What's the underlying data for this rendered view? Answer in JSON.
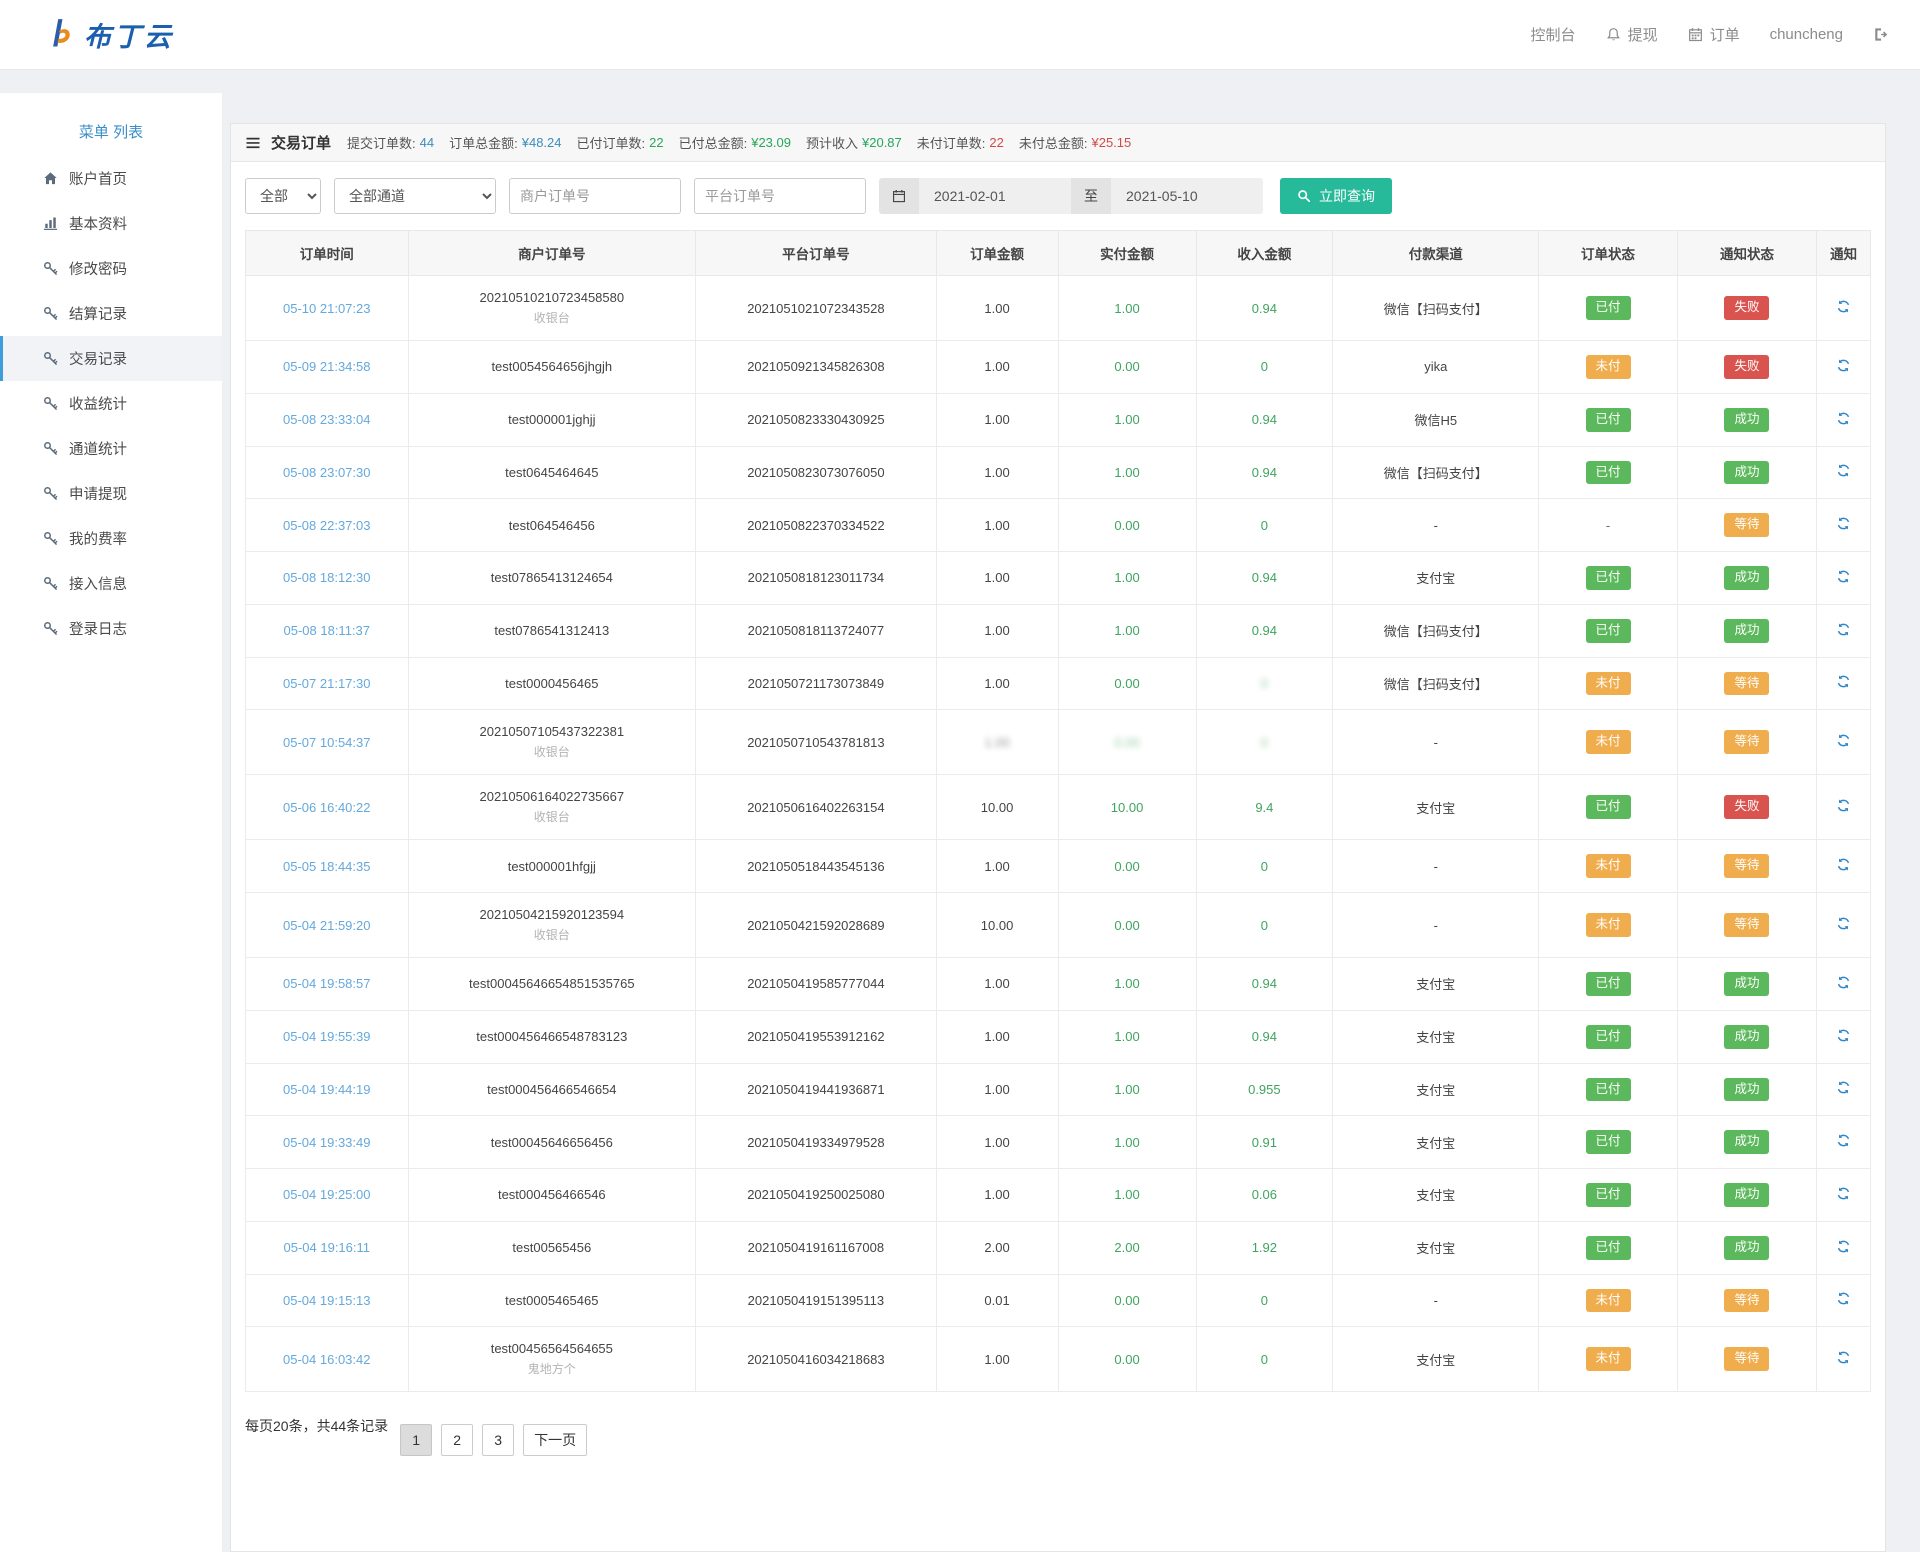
{
  "header": {
    "logo_text": "布丁云",
    "nav": {
      "console": "控制台",
      "withdraw": "提现",
      "orders": "订单",
      "username": "chuncheng"
    }
  },
  "sidebar": {
    "title": "菜单 列表",
    "items": [
      {
        "id": "account-home",
        "icon": "home",
        "label": "账户首页",
        "active": false
      },
      {
        "id": "basic-info",
        "icon": "chart",
        "label": "基本资料",
        "active": false
      },
      {
        "id": "change-password",
        "icon": "key",
        "label": "修改密码",
        "active": false
      },
      {
        "id": "settlement-records",
        "icon": "key",
        "label": "结算记录",
        "active": false
      },
      {
        "id": "transaction-records",
        "icon": "key",
        "label": "交易记录",
        "active": true
      },
      {
        "id": "income-stats",
        "icon": "key",
        "label": "收益统计",
        "active": false
      },
      {
        "id": "channel-stats",
        "icon": "key",
        "label": "通道统计",
        "active": false
      },
      {
        "id": "apply-withdraw",
        "icon": "key",
        "label": "申请提现",
        "active": false
      },
      {
        "id": "my-rates",
        "icon": "key",
        "label": "我的费率",
        "active": false
      },
      {
        "id": "access-info",
        "icon": "key",
        "label": "接入信息",
        "active": false
      },
      {
        "id": "login-logs",
        "icon": "key",
        "label": "登录日志",
        "active": false
      }
    ]
  },
  "panel": {
    "title": "交易订单",
    "stats": [
      {
        "id": "submitted-count",
        "label": "提交订单数:",
        "value": "44",
        "color": "blue"
      },
      {
        "id": "total-amount",
        "label": "订单总金额:",
        "value": "¥48.24",
        "color": "blue"
      },
      {
        "id": "paid-count",
        "label": "已付订单数:",
        "value": "22",
        "color": "green"
      },
      {
        "id": "paid-amount",
        "label": "已付总金额:",
        "value": "¥23.09",
        "color": "green"
      },
      {
        "id": "expected-income",
        "label": "预计收入",
        "value": "¥20.87",
        "color": "green"
      },
      {
        "id": "unpaid-count",
        "label": "未付订单数:",
        "value": "22",
        "color": "red"
      },
      {
        "id": "unpaid-amount",
        "label": "未付总金额:",
        "value": "¥25.15",
        "color": "red"
      }
    ],
    "filters": {
      "status_select": "全部",
      "channel_select": "全部通道",
      "merchant_no_placeholder": "商户订单号",
      "platform_no_placeholder": "平台订单号",
      "date_from": "2021-02-01",
      "date_separator": "至",
      "date_to": "2021-05-10",
      "search_button": "立即查询"
    },
    "table": {
      "headers": [
        "订单时间",
        "商户订单号",
        "平台订单号",
        "订单金额",
        "实付金额",
        "收入金额",
        "付款渠道",
        "订单状态",
        "通知状态",
        "通知"
      ],
      "rows": [
        {
          "time": "05-10 21:07:23",
          "merchant": "20210510210723458580",
          "merchant_sub": "收银台",
          "platform": "2021051021072343528",
          "amount": "1.00",
          "paid": "1.00",
          "income": "0.94",
          "channel": "微信【扫码支付】",
          "order_status": {
            "label": "已付",
            "type": "paid"
          },
          "notify_status": {
            "label": "失败",
            "type": "fail"
          },
          "blur": []
        },
        {
          "time": "05-09 21:34:58",
          "merchant": "test0054564656jhgjh",
          "merchant_sub": "",
          "platform": "2021050921345826308",
          "amount": "1.00",
          "paid": "0.00",
          "income": "0",
          "channel": "yika",
          "order_status": {
            "label": "未付",
            "type": "unpaid"
          },
          "notify_status": {
            "label": "失败",
            "type": "fail"
          },
          "blur": []
        },
        {
          "time": "05-08 23:33:04",
          "merchant": "test000001jghjj",
          "merchant_sub": "",
          "platform": "2021050823330430925",
          "amount": "1.00",
          "paid": "1.00",
          "income": "0.94",
          "channel": "微信H5",
          "order_status": {
            "label": "已付",
            "type": "paid"
          },
          "notify_status": {
            "label": "成功",
            "type": "success"
          },
          "blur": []
        },
        {
          "time": "05-08 23:07:30",
          "merchant": "test0645464645",
          "merchant_sub": "",
          "platform": "2021050823073076050",
          "amount": "1.00",
          "paid": "1.00",
          "income": "0.94",
          "channel": "微信【扫码支付】",
          "order_status": {
            "label": "已付",
            "type": "paid"
          },
          "notify_status": {
            "label": "成功",
            "type": "success"
          },
          "blur": []
        },
        {
          "time": "05-08 22:37:03",
          "merchant": "test064546456",
          "merchant_sub": "",
          "platform": "2021050822370334522",
          "amount": "1.00",
          "paid": "0.00",
          "income": "0",
          "channel": "-",
          "order_status": {
            "label": "-",
            "type": "none"
          },
          "notify_status": {
            "label": "等待",
            "type": "wait"
          },
          "blur": []
        },
        {
          "time": "05-08 18:12:30",
          "merchant": "test07865413124654",
          "merchant_sub": "",
          "platform": "2021050818123011734",
          "amount": "1.00",
          "paid": "1.00",
          "income": "0.94",
          "channel": "支付宝",
          "order_status": {
            "label": "已付",
            "type": "paid"
          },
          "notify_status": {
            "label": "成功",
            "type": "success"
          },
          "blur": []
        },
        {
          "time": "05-08 18:11:37",
          "merchant": "test0786541312413",
          "merchant_sub": "",
          "platform": "2021050818113724077",
          "amount": "1.00",
          "paid": "1.00",
          "income": "0.94",
          "channel": "微信【扫码支付】",
          "order_status": {
            "label": "已付",
            "type": "paid"
          },
          "notify_status": {
            "label": "成功",
            "type": "success"
          },
          "blur": []
        },
        {
          "time": "05-07 21:17:30",
          "merchant": "test0000456465",
          "merchant_sub": "",
          "platform": "2021050721173073849",
          "amount": "1.00",
          "paid": "0.00",
          "income": "0",
          "channel": "微信【扫码支付】",
          "order_status": {
            "label": "未付",
            "type": "unpaid"
          },
          "notify_status": {
            "label": "等待",
            "type": "wait"
          },
          "blur": [
            "income"
          ]
        },
        {
          "time": "05-07 10:54:37",
          "merchant": "20210507105437322381",
          "merchant_sub": "收银台",
          "platform": "2021050710543781813",
          "amount": "1.00",
          "paid": "0.00",
          "income": "0",
          "channel": "-",
          "order_status": {
            "label": "未付",
            "type": "unpaid"
          },
          "notify_status": {
            "label": "等待",
            "type": "wait"
          },
          "blur": [
            "amount",
            "paid",
            "income"
          ]
        },
        {
          "time": "05-06 16:40:22",
          "merchant": "20210506164022735667",
          "merchant_sub": "收银台",
          "platform": "2021050616402263154",
          "amount": "10.00",
          "paid": "10.00",
          "income": "9.4",
          "channel": "支付宝",
          "order_status": {
            "label": "已付",
            "type": "paid"
          },
          "notify_status": {
            "label": "失败",
            "type": "fail"
          },
          "blur": []
        },
        {
          "time": "05-05 18:44:35",
          "merchant": "test000001hfgjj",
          "merchant_sub": "",
          "platform": "2021050518443545136",
          "amount": "1.00",
          "paid": "0.00",
          "income": "0",
          "channel": "-",
          "order_status": {
            "label": "未付",
            "type": "unpaid"
          },
          "notify_status": {
            "label": "等待",
            "type": "wait"
          },
          "blur": []
        },
        {
          "time": "05-04 21:59:20",
          "merchant": "20210504215920123594",
          "merchant_sub": "收银台",
          "platform": "2021050421592028689",
          "amount": "10.00",
          "paid": "0.00",
          "income": "0",
          "channel": "-",
          "order_status": {
            "label": "未付",
            "type": "unpaid"
          },
          "notify_status": {
            "label": "等待",
            "type": "wait"
          },
          "blur": []
        },
        {
          "time": "05-04 19:58:57",
          "merchant": "test00045646654851535765",
          "merchant_sub": "",
          "platform": "2021050419585777044",
          "amount": "1.00",
          "paid": "1.00",
          "income": "0.94",
          "channel": "支付宝",
          "order_status": {
            "label": "已付",
            "type": "paid"
          },
          "notify_status": {
            "label": "成功",
            "type": "success"
          },
          "blur": []
        },
        {
          "time": "05-04 19:55:39",
          "merchant": "test000456466548783123",
          "merchant_sub": "",
          "platform": "2021050419553912162",
          "amount": "1.00",
          "paid": "1.00",
          "income": "0.94",
          "channel": "支付宝",
          "order_status": {
            "label": "已付",
            "type": "paid"
          },
          "notify_status": {
            "label": "成功",
            "type": "success"
          },
          "blur": []
        },
        {
          "time": "05-04 19:44:19",
          "merchant": "test000456466546654",
          "merchant_sub": "",
          "platform": "2021050419441936871",
          "amount": "1.00",
          "paid": "1.00",
          "income": "0.955",
          "channel": "支付宝",
          "order_status": {
            "label": "已付",
            "type": "paid"
          },
          "notify_status": {
            "label": "成功",
            "type": "success"
          },
          "blur": []
        },
        {
          "time": "05-04 19:33:49",
          "merchant": "test00045646656456",
          "merchant_sub": "",
          "platform": "2021050419334979528",
          "amount": "1.00",
          "paid": "1.00",
          "income": "0.91",
          "channel": "支付宝",
          "order_status": {
            "label": "已付",
            "type": "paid"
          },
          "notify_status": {
            "label": "成功",
            "type": "success"
          },
          "blur": []
        },
        {
          "time": "05-04 19:25:00",
          "merchant": "test000456466546",
          "merchant_sub": "",
          "platform": "2021050419250025080",
          "amount": "1.00",
          "paid": "1.00",
          "income": "0.06",
          "channel": "支付宝",
          "order_status": {
            "label": "已付",
            "type": "paid"
          },
          "notify_status": {
            "label": "成功",
            "type": "success"
          },
          "blur": []
        },
        {
          "time": "05-04 19:16:11",
          "merchant": "test00565456",
          "merchant_sub": "",
          "platform": "2021050419161167008",
          "amount": "2.00",
          "paid": "2.00",
          "income": "1.92",
          "channel": "支付宝",
          "order_status": {
            "label": "已付",
            "type": "paid"
          },
          "notify_status": {
            "label": "成功",
            "type": "success"
          },
          "blur": []
        },
        {
          "time": "05-04 19:15:13",
          "merchant": "test0005465465",
          "merchant_sub": "",
          "platform": "2021050419151395113",
          "amount": "0.01",
          "paid": "0.00",
          "income": "0",
          "channel": "-",
          "order_status": {
            "label": "未付",
            "type": "unpaid"
          },
          "notify_status": {
            "label": "等待",
            "type": "wait"
          },
          "blur": []
        },
        {
          "time": "05-04 16:03:42",
          "merchant": "test00456564564655",
          "merchant_sub": "鬼地方个",
          "platform": "2021050416034218683",
          "amount": "1.00",
          "paid": "0.00",
          "income": "0",
          "channel": "支付宝",
          "order_status": {
            "label": "未付",
            "type": "unpaid"
          },
          "notify_status": {
            "label": "等待",
            "type": "wait"
          },
          "blur": []
        }
      ]
    },
    "pagination": {
      "summary": "每页20条，共44条记录",
      "pages": [
        {
          "label": "1",
          "active": true,
          "next": false
        },
        {
          "label": "2",
          "active": false,
          "next": false
        },
        {
          "label": "3",
          "active": false,
          "next": false
        },
        {
          "label": "下一页",
          "active": false,
          "next": true
        }
      ]
    }
  },
  "colors": {
    "stat_blue": "#3b8dbc",
    "stat_green": "#26a65b",
    "stat_red": "#d14a45",
    "badge_green": "#5cb85c",
    "badge_orange": "#f0ad4e",
    "badge_red": "#d9534f",
    "button_green": "#26b99a",
    "link_blue": "#64a8dc",
    "logo_blue": "#1b5fae"
  }
}
